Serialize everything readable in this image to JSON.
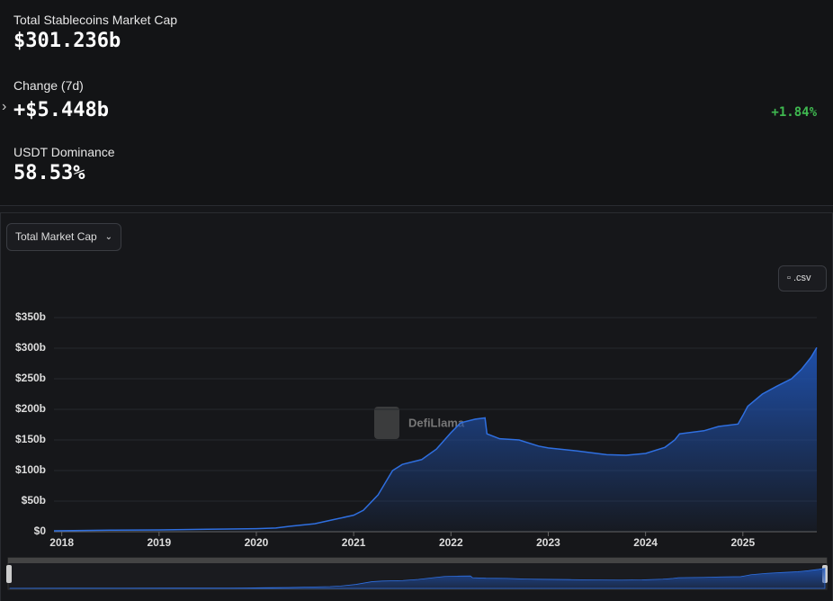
{
  "stats": [
    {
      "label": "Total Stablecoins Market Cap",
      "value": "$301.236b"
    },
    {
      "label": "Change (7d)",
      "value": "+$5.448b",
      "change": "+1.84%"
    },
    {
      "label": "USDT Dominance",
      "value": "58.53%"
    }
  ],
  "dropdown": "Total Market Cap",
  "csv_button": ".csv",
  "watermark": "DefiLlama",
  "chart_data": {
    "type": "area",
    "x": [
      2017.92,
      2018.5,
      2019.0,
      2019.5,
      2020.0,
      2020.2,
      2020.35,
      2020.6,
      2020.8,
      2021.0,
      2021.1,
      2021.25,
      2021.4,
      2021.5,
      2021.7,
      2021.85,
      2022.0,
      2022.1,
      2022.25,
      2022.35,
      2022.37,
      2022.5,
      2022.7,
      2022.9,
      2023.0,
      2023.3,
      2023.6,
      2023.8,
      2024.0,
      2024.2,
      2024.3,
      2024.35,
      2024.6,
      2024.75,
      2024.95,
      2025.0,
      2025.05,
      2025.2,
      2025.35,
      2025.5,
      2025.6,
      2025.7,
      2025.76
    ],
    "series": [
      {
        "color": "#2f6fe0",
        "values": [
          1.5,
          2.5,
          3,
          4,
          5,
          6,
          9,
          13,
          20,
          27,
          35,
          60,
          100,
          110,
          118,
          135,
          162,
          178,
          184,
          186,
          160,
          152,
          150,
          140,
          137,
          132,
          126,
          125,
          128,
          138,
          150,
          160,
          165,
          172,
          176,
          190,
          205,
          225,
          238,
          250,
          265,
          285,
          301
        ]
      }
    ],
    "xlim": [
      2017.92,
      2025.76
    ],
    "xticks": [
      2018,
      2019,
      2020,
      2021,
      2022,
      2023,
      2024,
      2025
    ],
    "ylim": [
      0,
      350
    ],
    "yticks": [
      {
        "value": 0,
        "label": "$0"
      },
      {
        "value": 50,
        "label": "$50b"
      },
      {
        "value": 100,
        "label": "$100b"
      },
      {
        "value": 150,
        "label": "$150b"
      },
      {
        "value": 200,
        "label": "$200b"
      },
      {
        "value": 250,
        "label": "$250b"
      },
      {
        "value": 300,
        "label": "$300b"
      },
      {
        "value": 350,
        "label": "$350b"
      }
    ],
    "grid": true
  }
}
